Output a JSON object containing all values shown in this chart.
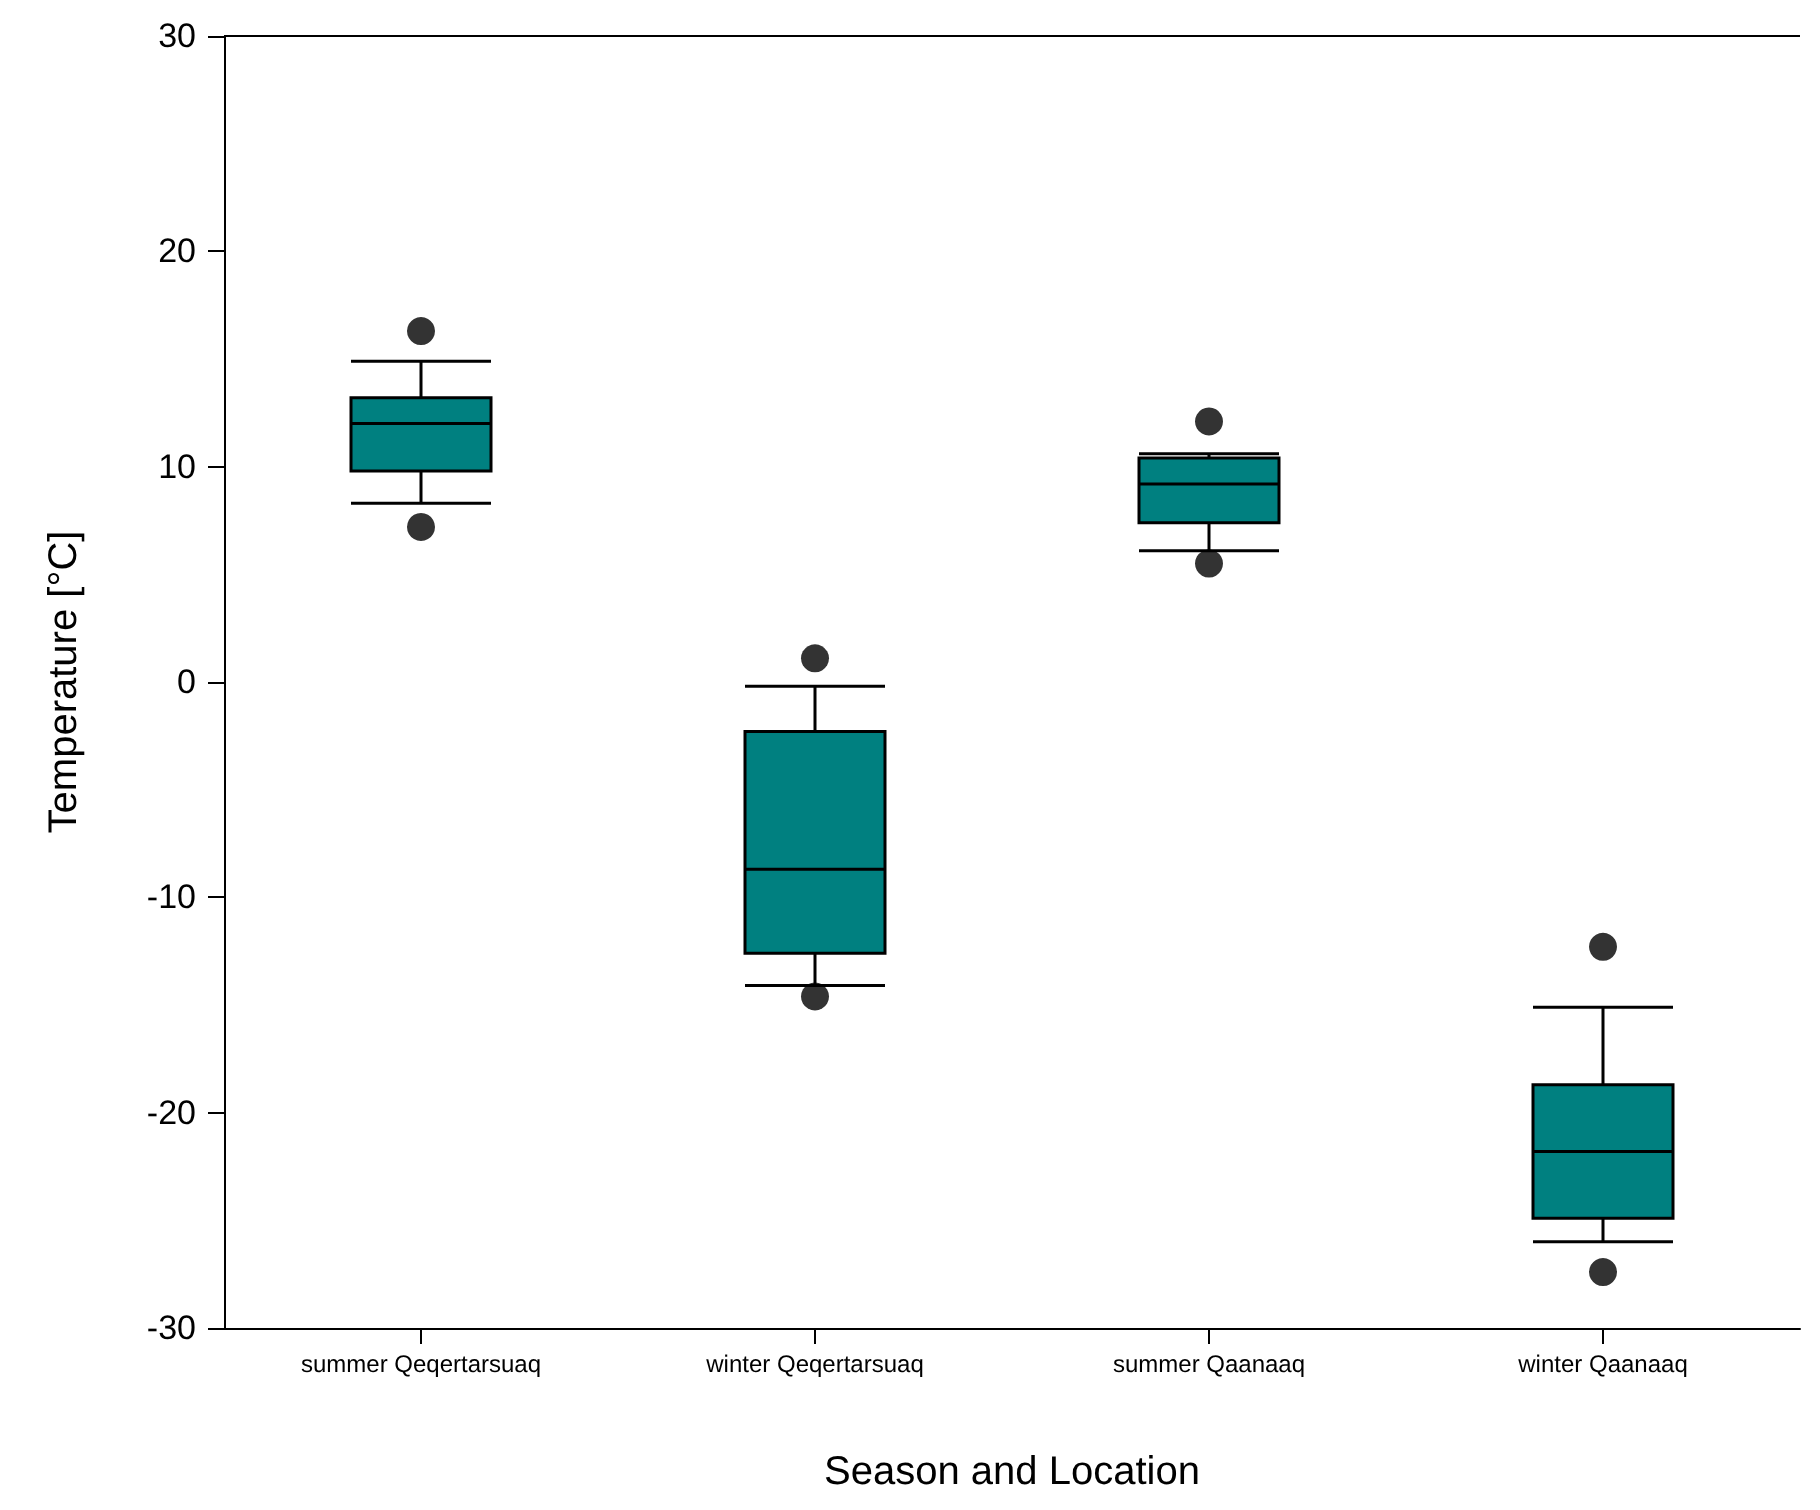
{
  "chart_data": {
    "type": "box",
    "xlabel": "Season and Location",
    "ylabel": "Temperature [°C]",
    "categories": [
      "summer Qeqertarsuaq",
      "winter Qeqertarsuaq",
      "summer Qaanaaq",
      "winter Qaanaaq"
    ],
    "boxes": [
      {
        "low": 8.3,
        "q1": 9.8,
        "median": 12.0,
        "q3": 13.2,
        "high": 14.9,
        "outliers": [
          16.3,
          7.2
        ]
      },
      {
        "low": -14.1,
        "q1": -12.6,
        "median": -8.7,
        "q3": -2.3,
        "high": -0.2,
        "outliers": [
          1.1,
          -14.6
        ]
      },
      {
        "low": 6.1,
        "q1": 7.4,
        "median": 9.2,
        "q3": 10.4,
        "high": 10.6,
        "outliers": [
          12.1,
          5.5
        ]
      },
      {
        "low": -26.0,
        "q1": -24.9,
        "median": -21.8,
        "q3": -18.7,
        "high": -15.1,
        "outliers": [
          -12.3,
          -27.4
        ]
      }
    ],
    "color": "#008080",
    "ylim": [
      -30,
      30
    ],
    "yticks": [
      -30,
      -20,
      -10,
      0,
      10,
      20,
      30
    ],
    "grid": false
  }
}
